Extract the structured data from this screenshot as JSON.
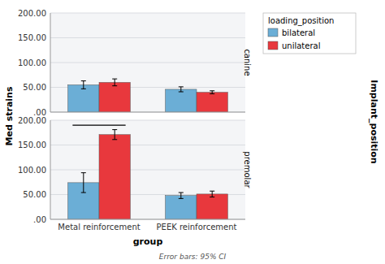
{
  "chart_data": [
    {
      "type": "bar",
      "title": "canine",
      "categories": [
        "Metal reinforcement",
        "PEEK reinforcement"
      ],
      "series": [
        {
          "name": "bilateral",
          "color": "#6baed6",
          "values": [
            55.0,
            46.0
          ],
          "errors": [
            8.0,
            5.0
          ]
        },
        {
          "name": "unilateral",
          "color": "#e8383d",
          "values": [
            60.0,
            40.0
          ],
          "errors": [
            7.0,
            3.0
          ]
        }
      ],
      "ylim": [
        0,
        200
      ],
      "yticks": [
        {
          "value": 0,
          "label": ".00"
        },
        {
          "value": 50,
          "label": "50.00"
        },
        {
          "value": 100,
          "label": "100.00"
        },
        {
          "value": 150,
          "label": "150.00"
        },
        {
          "value": 200,
          "label": "200.00"
        }
      ],
      "grid": true,
      "tick_labels": "y",
      "ylabel": "Med strains",
      "legend": "right",
      "legend_title": "loading_position"
    },
    {
      "type": "bar",
      "title": "premolar",
      "categories": [
        "Metal reinforcement",
        "PEEK reinforcement"
      ],
      "series": [
        {
          "name": "bilateral",
          "color": "#6baed6",
          "values": [
            74.0,
            48.0
          ],
          "errors": [
            20.0,
            6.0
          ]
        },
        {
          "name": "unilateral",
          "color": "#e8383d",
          "values": [
            171.0,
            51.0
          ],
          "errors": [
            10.0,
            6.0
          ]
        }
      ],
      "ylim": [
        0,
        200
      ],
      "yticks": [
        {
          "value": 0,
          "label": ".00"
        },
        {
          "value": 50,
          "label": "50.00"
        },
        {
          "value": 100,
          "label": "100.00"
        },
        {
          "value": 150,
          "label": "150.00"
        },
        {
          "value": 200,
          "label": "200.00"
        }
      ],
      "grid": true,
      "significance_line": {
        "y": 190,
        "category": "Metal reinforcement"
      },
      "xlabel": "group",
      "facet_label": "Implant_position",
      "footnote": "Error bars: 95% CI"
    }
  ]
}
